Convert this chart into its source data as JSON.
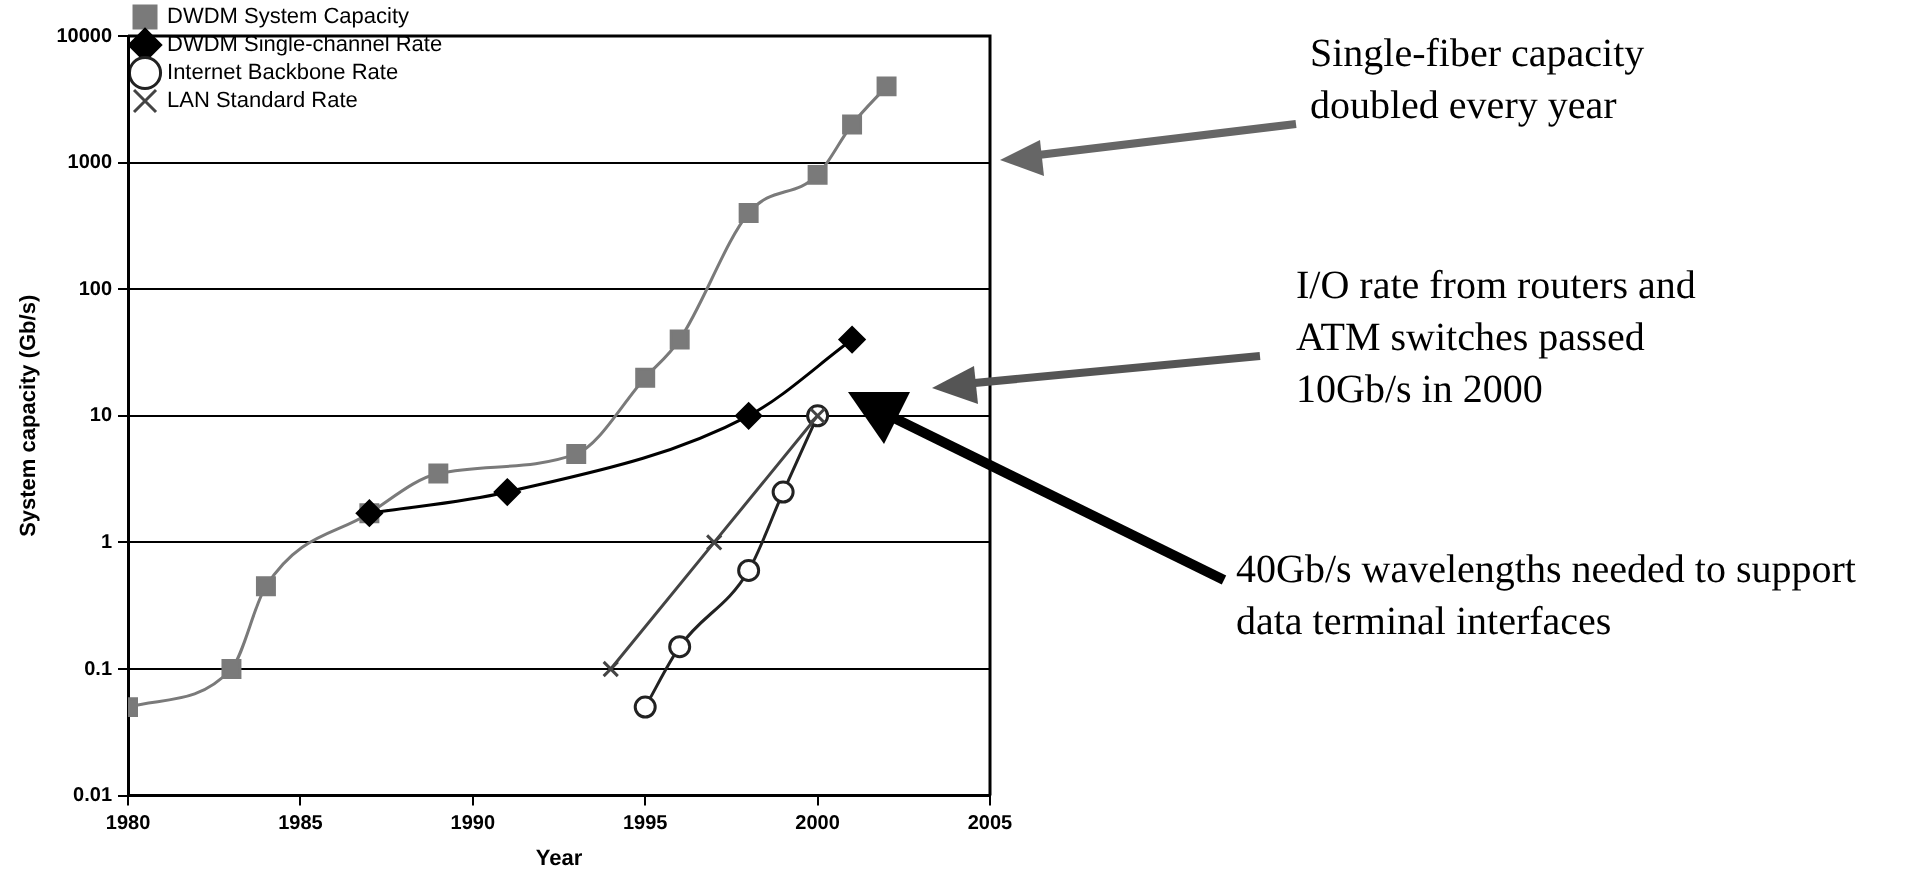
{
  "chart_data": {
    "type": "line",
    "xlabel": "Year",
    "ylabel": "System capacity (Gb/s)",
    "xlim": [
      1980,
      2005
    ],
    "xticks": [
      1980,
      1985,
      1990,
      1995,
      2000,
      2005
    ],
    "ylim": [
      0.01,
      10000
    ],
    "yticks": [
      0.01,
      0.1,
      1,
      10,
      100,
      1000,
      10000
    ],
    "log": "y",
    "grid": "y",
    "legend": "top left",
    "series": [
      {
        "name": "DWDM System Capacity",
        "color": "#7a7a7a",
        "marker": "square",
        "x": [
          1980,
          1983,
          1984,
          1987,
          1989,
          1993,
          1995,
          1996,
          1998,
          2000,
          2001,
          2002
        ],
        "values": [
          0.05,
          0.1,
          0.45,
          1.7,
          3.5,
          5,
          20,
          40,
          400,
          800,
          2000,
          4000
        ]
      },
      {
        "name": "DWDM Single-channel Rate",
        "color": "#000000",
        "marker": "diamond",
        "x": [
          1987,
          1991,
          1998,
          2001
        ],
        "values": [
          1.7,
          2.5,
          10,
          40
        ]
      },
      {
        "name": "Internet Backbone Rate",
        "color": "#222222",
        "marker": "circle",
        "x": [
          1995,
          1996,
          1998,
          1999,
          2000
        ],
        "values": [
          0.05,
          0.15,
          0.6,
          2.5,
          10
        ]
      },
      {
        "name": "LAN Standard Rate",
        "color": "#444444",
        "marker": "cross",
        "x": [
          1994,
          1997,
          2000
        ],
        "values": [
          0.1,
          1,
          10
        ]
      }
    ],
    "annotations": [
      "Single-fiber capacity doubled every year",
      "I/O rate from routers and ATM switches passed 10Gb/s in 2000",
      "40Gb/s wavelengths needed to support data terminal interfaces"
    ]
  }
}
